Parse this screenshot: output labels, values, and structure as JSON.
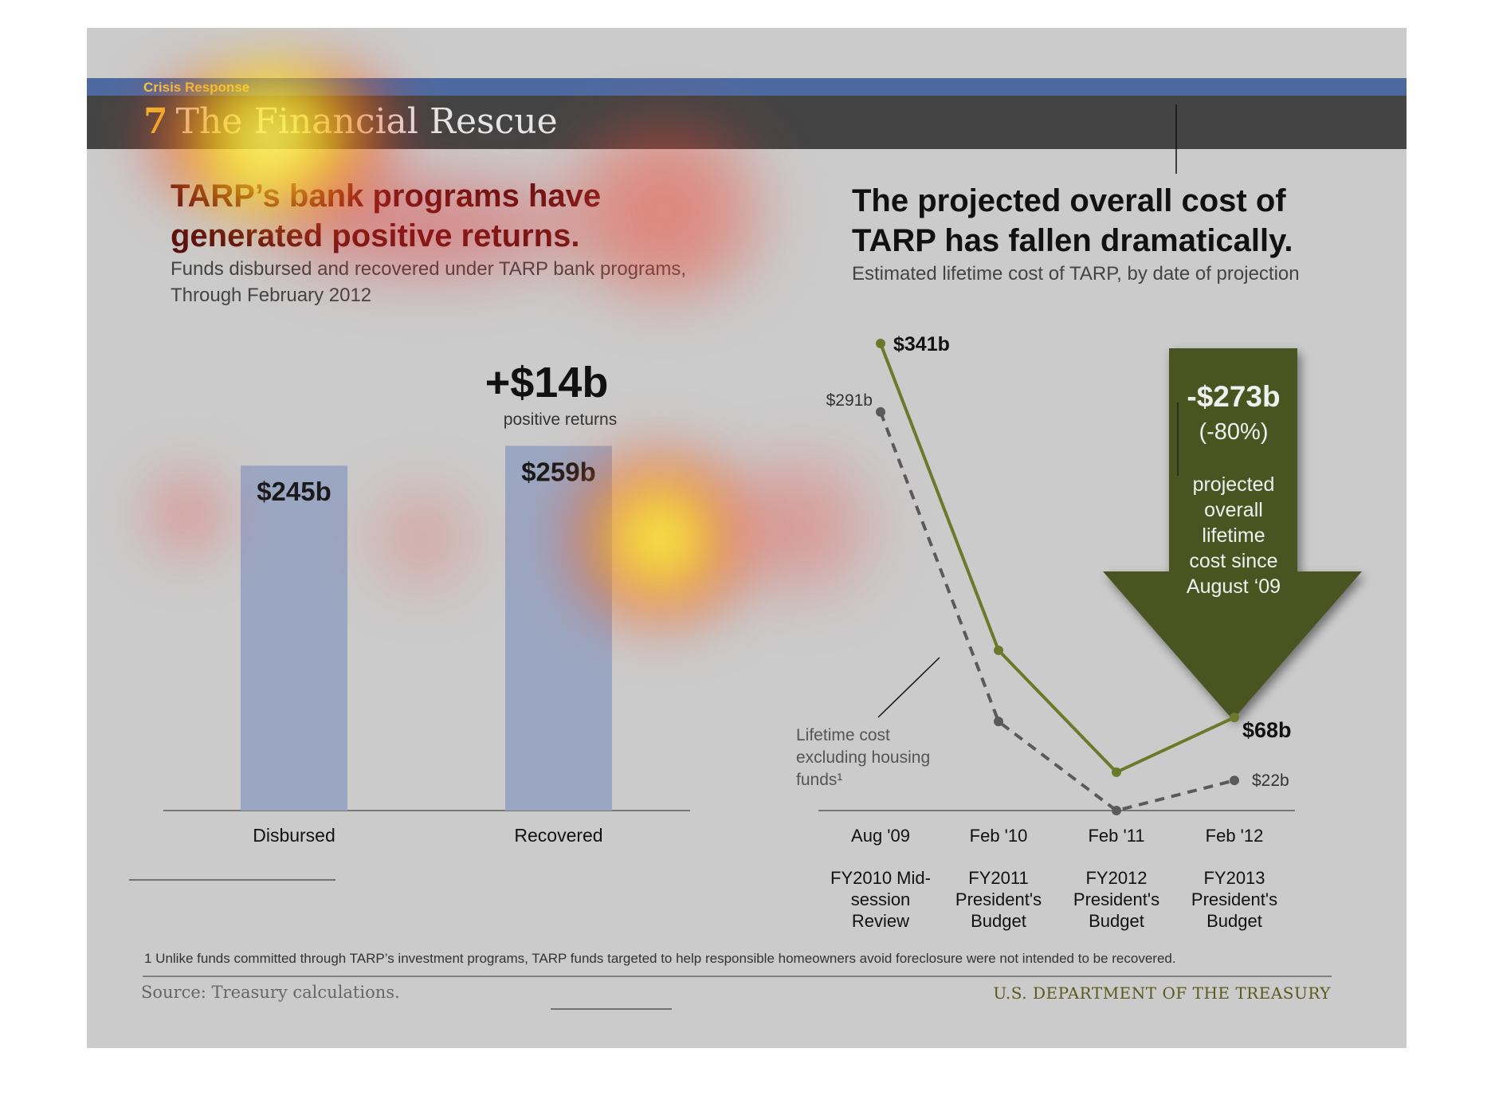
{
  "header": {
    "section": "Crisis Response",
    "number": "7",
    "title": "The Financial Rescue"
  },
  "left": {
    "title_line1": "TARP’s bank programs have",
    "title_line2": "generated positive returns.",
    "sub_line1": "Funds disbursed and recovered under TARP bank programs,",
    "sub_line2": "Through February 2012",
    "callout_value": "+$14b",
    "callout_label": "positive returns"
  },
  "right": {
    "title_line1": "The projected overall cost of",
    "title_line2": "TARP has fallen dramatically.",
    "sub": "Estimated lifetime cost of TARP, by date of projection",
    "arrow_value": "-$273b",
    "arrow_pct": "(-80%)",
    "arrow_text": [
      "projected",
      "overall",
      "lifetime",
      "cost since",
      "August ‘09"
    ],
    "annotation": [
      "Lifetime cost",
      "excluding housing",
      "funds¹"
    ]
  },
  "footer": {
    "footnote": "1 Unlike funds committed through TARP’s investment programs, TARP funds targeted to help responsible homeowners avoid foreclosure were not intended to be recovered.",
    "source": "Source: Treasury calculations.",
    "agency": "U.S. DEPARTMENT OF THE TREASURY"
  },
  "colors": {
    "bar": "#9ba7c2",
    "solid_line": "#6b7a2a",
    "dashed_line": "#5a5a5a",
    "arrow": "#4a5420"
  },
  "chart_data": [
    {
      "type": "bar",
      "categories": [
        "Disbursed",
        "Recovered"
      ],
      "values": [
        245,
        259
      ],
      "data_labels": [
        "$245b",
        "$259b"
      ],
      "ylim": [
        0,
        300
      ]
    },
    {
      "type": "line",
      "x": [
        "Aug '09",
        "Feb '10",
        "Feb '11",
        "Feb '12"
      ],
      "x_sublabels": [
        [
          "FY2010 Mid-",
          "session",
          "Review"
        ],
        [
          "FY2011",
          "President's",
          "Budget"
        ],
        [
          "FY2012",
          "President's",
          "Budget"
        ],
        [
          "FY2013",
          "President's",
          "Budget"
        ]
      ],
      "series": [
        {
          "values": [
            341,
            117,
            28,
            68
          ],
          "style": "solid",
          "labels": [
            "$341b",
            "",
            "",
            "$68b"
          ]
        },
        {
          "values": [
            291,
            65,
            0,
            22
          ],
          "style": "dashed",
          "labels": [
            "$291b",
            "",
            "",
            "$22b"
          ]
        }
      ],
      "ylim": [
        0,
        341
      ]
    }
  ]
}
